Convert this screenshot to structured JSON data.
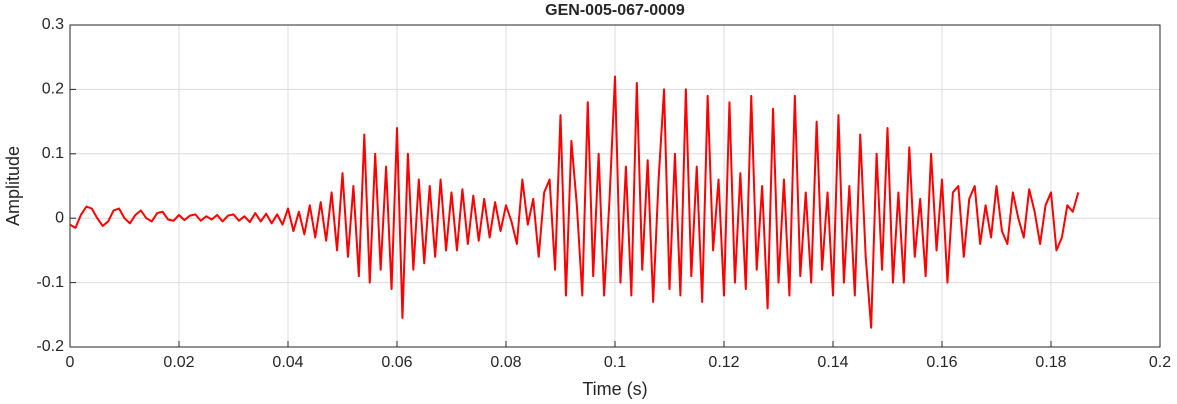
{
  "chart_data": {
    "type": "line",
    "title": "GEN-005-067-0009",
    "xlabel": "Time (s)",
    "ylabel": "Amplitude",
    "color": "#ff0000",
    "grid": true,
    "xlim": [
      0,
      0.2
    ],
    "ylim": [
      -0.2,
      0.3
    ],
    "xticks": [
      0,
      0.02,
      0.04,
      0.06,
      0.08,
      0.1,
      0.12,
      0.14,
      0.16,
      0.18,
      0.2
    ],
    "yticks": [
      -0.2,
      -0.1,
      0,
      0.1,
      0.2,
      0.3
    ],
    "x": [
      0,
      0.001,
      0.002,
      0.003,
      0.004,
      0.005,
      0.006,
      0.007,
      0.008,
      0.009,
      0.01,
      0.011,
      0.012,
      0.013,
      0.014,
      0.015,
      0.016,
      0.017,
      0.018,
      0.019,
      0.02,
      0.021,
      0.022,
      0.023,
      0.024,
      0.025,
      0.026,
      0.027,
      0.028,
      0.029,
      0.03,
      0.031,
      0.032,
      0.033,
      0.034,
      0.035,
      0.036,
      0.037,
      0.038,
      0.039,
      0.04,
      0.041,
      0.042,
      0.043,
      0.044,
      0.045,
      0.046,
      0.047,
      0.048,
      0.049,
      0.05,
      0.051,
      0.052,
      0.053,
      0.054,
      0.055,
      0.056,
      0.057,
      0.058,
      0.059,
      0.06,
      0.061,
      0.062,
      0.063,
      0.064,
      0.065,
      0.066,
      0.067,
      0.068,
      0.069,
      0.07,
      0.071,
      0.072,
      0.073,
      0.074,
      0.075,
      0.076,
      0.077,
      0.078,
      0.079,
      0.08,
      0.081,
      0.082,
      0.083,
      0.084,
      0.085,
      0.086,
      0.087,
      0.088,
      0.089,
      0.09,
      0.091,
      0.092,
      0.093,
      0.094,
      0.095,
      0.096,
      0.097,
      0.098,
      0.099,
      0.1,
      0.101,
      0.102,
      0.103,
      0.104,
      0.105,
      0.106,
      0.107,
      0.108,
      0.109,
      0.11,
      0.111,
      0.112,
      0.113,
      0.114,
      0.115,
      0.116,
      0.117,
      0.118,
      0.119,
      0.12,
      0.121,
      0.122,
      0.123,
      0.124,
      0.125,
      0.126,
      0.127,
      0.128,
      0.129,
      0.13,
      0.131,
      0.132,
      0.133,
      0.134,
      0.135,
      0.136,
      0.137,
      0.138,
      0.139,
      0.14,
      0.141,
      0.142,
      0.143,
      0.144,
      0.145,
      0.146,
      0.147,
      0.148,
      0.149,
      0.15,
      0.151,
      0.152,
      0.153,
      0.154,
      0.155,
      0.156,
      0.157,
      0.158,
      0.159,
      0.16,
      0.161,
      0.162,
      0.163,
      0.164,
      0.165,
      0.166,
      0.167,
      0.168,
      0.169,
      0.17,
      0.171,
      0.172,
      0.173,
      0.174,
      0.175,
      0.176,
      0.177,
      0.178,
      0.179,
      0.18,
      0.181,
      0.182,
      0.183,
      0.184,
      0.185
    ],
    "values": [
      -0.01,
      -0.015,
      0.005,
      0.018,
      0.015,
      0.0,
      -0.012,
      -0.005,
      0.012,
      0.015,
      0.0,
      -0.008,
      0.005,
      0.012,
      0.0,
      -0.005,
      0.008,
      0.01,
      -0.002,
      -0.004,
      0.005,
      -0.003,
      0.004,
      0.006,
      -0.004,
      0.003,
      -0.002,
      0.005,
      -0.005,
      0.004,
      0.006,
      -0.004,
      0.003,
      -0.006,
      0.008,
      -0.005,
      0.007,
      -0.008,
      0.006,
      -0.01,
      0.015,
      -0.02,
      0.01,
      -0.025,
      0.02,
      -0.03,
      0.025,
      -0.035,
      0.04,
      -0.05,
      0.07,
      -0.06,
      0.05,
      -0.09,
      0.13,
      -0.1,
      0.1,
      -0.08,
      0.08,
      -0.11,
      0.14,
      -0.155,
      0.1,
      -0.08,
      0.06,
      -0.07,
      0.05,
      -0.06,
      0.06,
      -0.05,
      0.04,
      -0.05,
      0.045,
      -0.04,
      0.035,
      -0.035,
      0.03,
      -0.03,
      0.025,
      -0.02,
      0.02,
      -0.005,
      -0.04,
      0.06,
      -0.01,
      0.03,
      -0.06,
      0.04,
      0.06,
      -0.08,
      0.16,
      -0.12,
      0.12,
      0.02,
      -0.12,
      0.18,
      -0.09,
      0.1,
      -0.12,
      0.03,
      0.22,
      -0.1,
      0.08,
      -0.12,
      0.21,
      -0.08,
      0.09,
      -0.13,
      0.06,
      0.2,
      -0.11,
      0.1,
      -0.12,
      0.2,
      -0.09,
      0.08,
      -0.13,
      0.19,
      -0.05,
      0.06,
      -0.12,
      0.18,
      -0.1,
      0.07,
      -0.11,
      0.19,
      -0.08,
      0.05,
      -0.14,
      0.17,
      -0.1,
      0.06,
      -0.12,
      0.19,
      -0.09,
      0.04,
      -0.1,
      0.15,
      -0.08,
      0.04,
      -0.12,
      0.16,
      -0.1,
      0.05,
      -0.12,
      0.13,
      -0.06,
      -0.17,
      0.1,
      -0.08,
      0.14,
      -0.1,
      0.04,
      -0.1,
      0.11,
      -0.06,
      0.03,
      -0.09,
      0.1,
      -0.05,
      0.06,
      -0.1,
      0.04,
      0.05,
      -0.06,
      0.03,
      0.05,
      -0.04,
      0.02,
      -0.03,
      0.05,
      -0.02,
      -0.04,
      0.04,
      0.0,
      -0.03,
      0.045,
      0.01,
      -0.04,
      0.02,
      0.04,
      -0.05,
      -0.03,
      0.02,
      0.01,
      0.04
    ]
  }
}
